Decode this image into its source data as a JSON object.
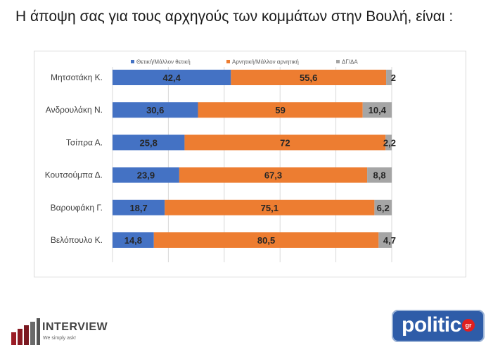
{
  "title": "Η άποψη σας για τους αρχηγούς των κομμάτων στην Βουλή,  είναι :",
  "chart_data": {
    "type": "bar",
    "orientation": "horizontal",
    "stacked": "100%",
    "categories": [
      "Μητσοτάκη Κ.",
      "Ανδρουλάκη Ν.",
      "Τσίπρα Α.",
      "Κουτσούμπα Δ.",
      "Βαρουφάκη Γ.",
      "Βελόπουλο Κ."
    ],
    "series": [
      {
        "name": "Θετική/Μάλλον θετική",
        "color": "#4472c4",
        "values": [
          42.4,
          30.6,
          25.8,
          23.9,
          18.7,
          14.8
        ],
        "labels": [
          "42,4",
          "30,6",
          "25,8",
          "23,9",
          "18,7",
          "14,8"
        ]
      },
      {
        "name": "Αρνητική/Μάλλον αρνητική",
        "color": "#ed7d31",
        "values": [
          55.6,
          59,
          72,
          67.3,
          75.1,
          80.5
        ],
        "labels": [
          "55,6",
          "59",
          "72",
          "67,3",
          "75,1",
          "80,5"
        ]
      },
      {
        "name": "ΔΓ/ΔΑ",
        "color": "#a5a5a5",
        "values": [
          2,
          10.4,
          2.2,
          8.8,
          6.2,
          4.7
        ],
        "labels": [
          "2",
          "10,4",
          "2,2",
          "8,8",
          "6,2",
          "4,7"
        ]
      }
    ],
    "xlim": [
      0,
      100
    ],
    "grid": true,
    "legend_position": "top"
  },
  "logos": {
    "interview": {
      "name": "INTERVIEW",
      "tagline": "We simply ask!"
    },
    "politic": {
      "name": "politic",
      "suffix": "gr"
    }
  }
}
